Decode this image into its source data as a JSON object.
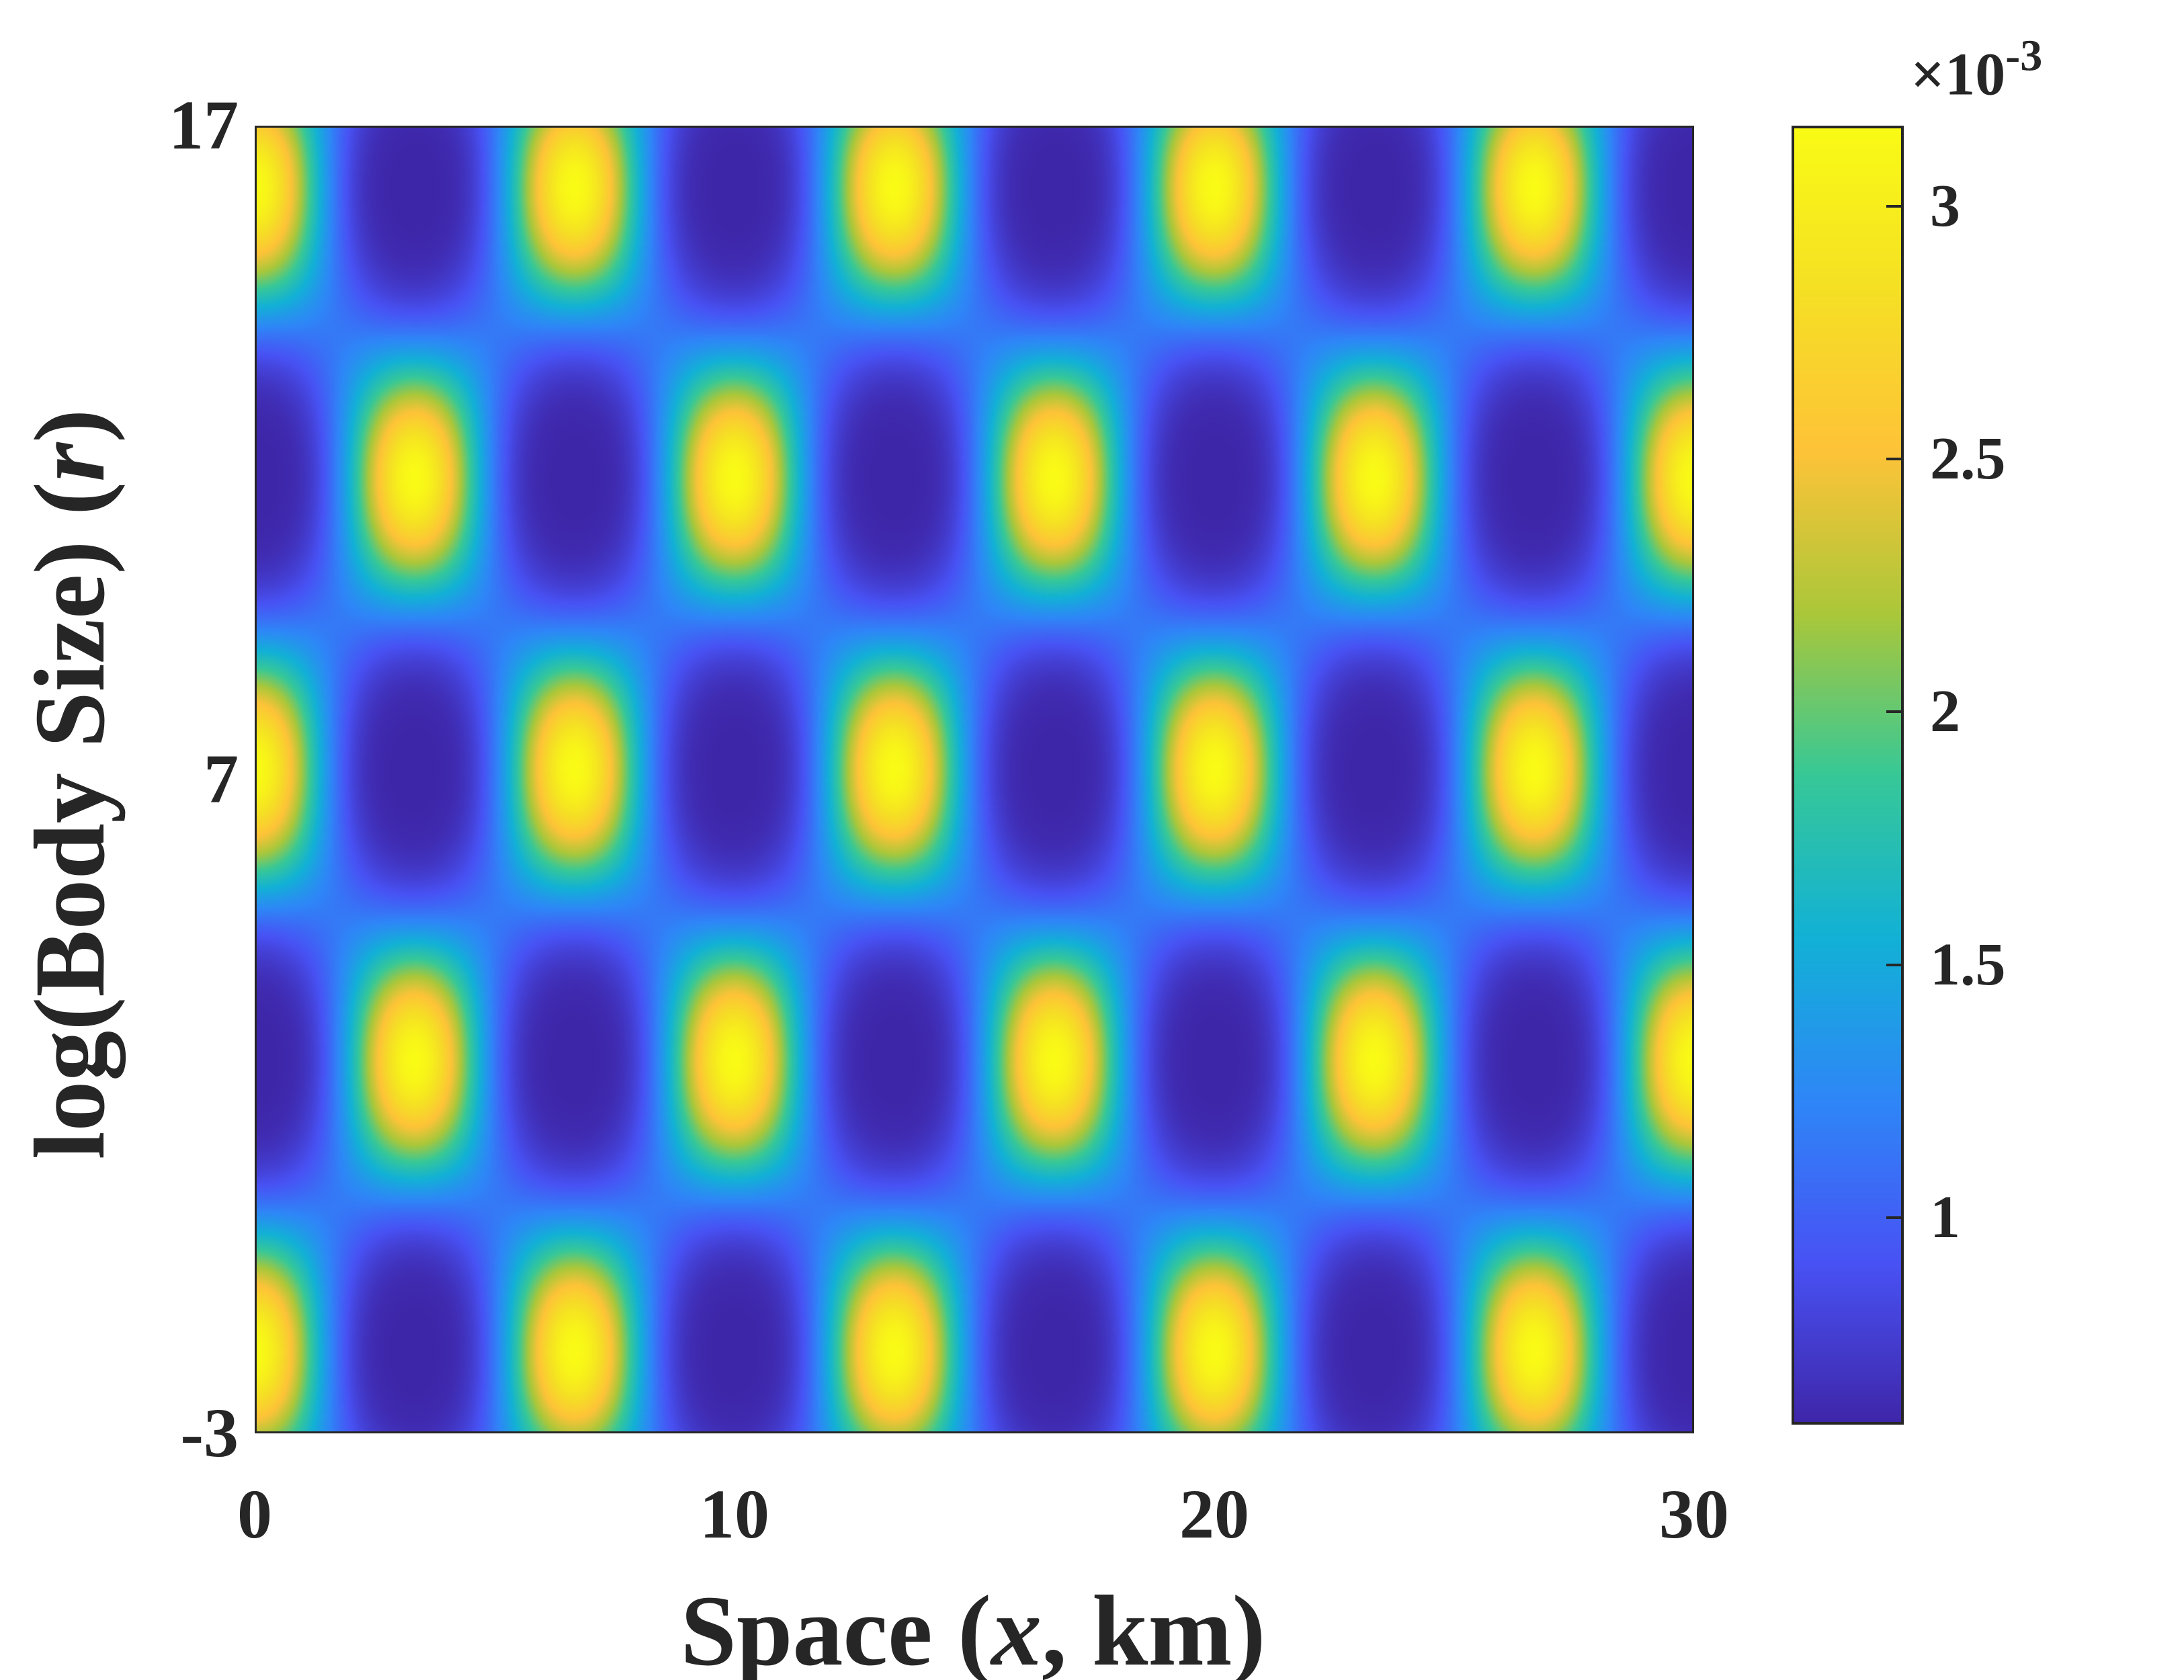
{
  "chart_data": {
    "type": "heatmap",
    "title": "",
    "xlabel": {
      "prefix": "Space (",
      "var": "x",
      "suffix": ", km)"
    },
    "ylabel": {
      "prefix": "log(Body Size) (",
      "var": "r",
      "suffix": ")"
    },
    "xlim": [
      0,
      30
    ],
    "ylim": [
      -3,
      17
    ],
    "x_ticks": [
      0,
      10,
      20,
      30
    ],
    "x_tick_labels": [
      "0",
      "10",
      "20",
      "30"
    ],
    "y_ticks": [
      -3,
      7,
      17
    ],
    "y_tick_labels": [
      "-3",
      "7",
      "17"
    ],
    "colorbar": {
      "range": [
        0.59,
        3.16
      ],
      "ticks": [
        1,
        1.5,
        2,
        2.5,
        3
      ],
      "tick_labels": [
        "1",
        "1.5",
        "2",
        "2.5",
        "3"
      ],
      "multiplier_base": "×10",
      "multiplier_exp": "-3",
      "colormap": "parula",
      "colors": [
        "#3e26a8",
        "#4852f4",
        "#2e87f7",
        "#12b1d6",
        "#37c897",
        "#abc739",
        "#fec338",
        "#f5e024",
        "#f9fb15"
      ]
    },
    "pattern": {
      "x_period": 6.667,
      "r_row_spacing": 4.45,
      "peak_rows_r": [
        16.0,
        11.6,
        7.15,
        2.7,
        -1.75
      ],
      "peak_x_even_rows": [
        0,
        6.67,
        13.33,
        20,
        26.67
      ],
      "peak_x_odd_rows": [
        3.33,
        10,
        16.67,
        23.33,
        30
      ],
      "max_value": 3.16,
      "min_value": 0.59,
      "between_rows_value": 1.25
    }
  }
}
